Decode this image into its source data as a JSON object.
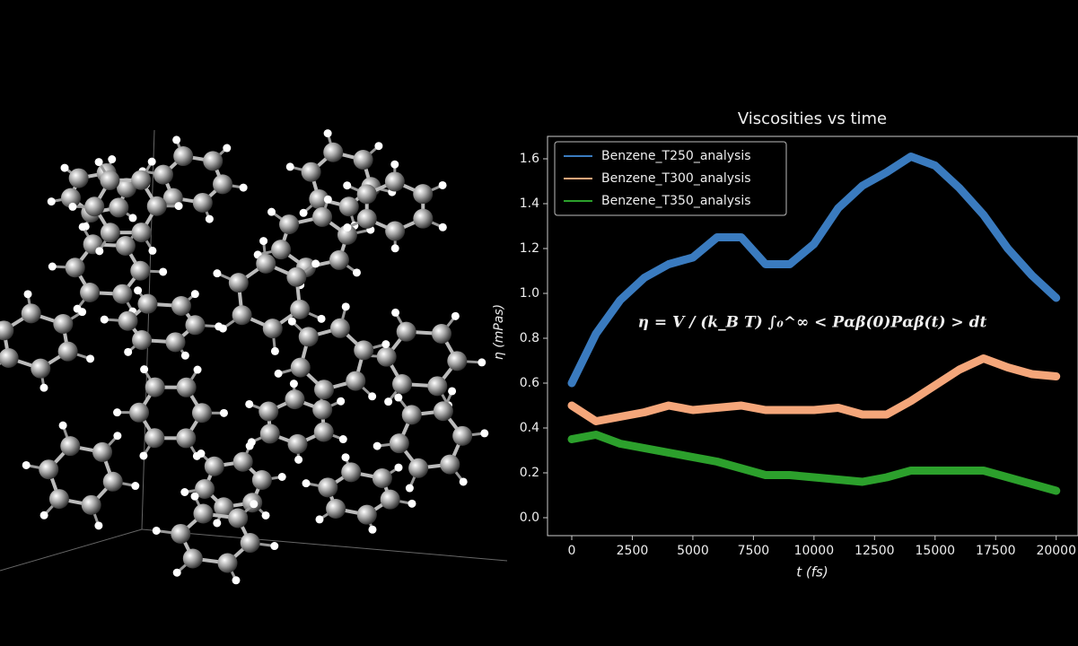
{
  "chart_data": {
    "type": "line",
    "title": "Viscosities vs time",
    "xlabel": "t   (fs)",
    "ylabel": "η   (mPas)",
    "annotation": "η = V / (k_B T) ∫₀^∞ < Pαβ(0)Pαβ(t) > dt",
    "x": [
      0,
      1000,
      2000,
      3000,
      4000,
      5000,
      6000,
      7000,
      8000,
      9000,
      10000,
      11000,
      12000,
      13000,
      14000,
      15000,
      16000,
      17000,
      18000,
      19000,
      20000
    ],
    "series": [
      {
        "name": "Benzene_T250_analysis",
        "color": "#3a7bbf",
        "values": [
          0.6,
          0.82,
          0.97,
          1.07,
          1.13,
          1.16,
          1.25,
          1.25,
          1.13,
          1.13,
          1.22,
          1.38,
          1.48,
          1.54,
          1.61,
          1.57,
          1.47,
          1.35,
          1.2,
          1.08,
          0.98
        ]
      },
      {
        "name": "Benzene_T300_analysis",
        "color": "#f4a67a",
        "values": [
          0.5,
          0.43,
          0.45,
          0.47,
          0.5,
          0.48,
          0.49,
          0.5,
          0.48,
          0.48,
          0.48,
          0.49,
          0.46,
          0.46,
          0.52,
          0.59,
          0.66,
          0.71,
          0.67,
          0.64,
          0.63
        ]
      },
      {
        "name": "Benzene_T350_analysis",
        "color": "#2ca02c",
        "values": [
          0.35,
          0.37,
          0.33,
          0.31,
          0.29,
          0.27,
          0.25,
          0.22,
          0.19,
          0.19,
          0.18,
          0.17,
          0.16,
          0.18,
          0.21,
          0.21,
          0.21,
          0.21,
          0.18,
          0.15,
          0.12
        ]
      }
    ],
    "xlim": [
      -1000,
      20900
    ],
    "ylim": [
      -0.08,
      1.7
    ],
    "xticks": [
      0,
      2500,
      5000,
      7500,
      10000,
      12500,
      15000,
      17500,
      20000
    ],
    "yticks": [
      {
        "value": 0,
        "label": "0.0"
      },
      0.2,
      0.4,
      0.6,
      0.8,
      {
        "value": 1,
        "label": "1.0"
      },
      1.2,
      1.4,
      1.6
    ],
    "legend": "upper-left"
  }
}
